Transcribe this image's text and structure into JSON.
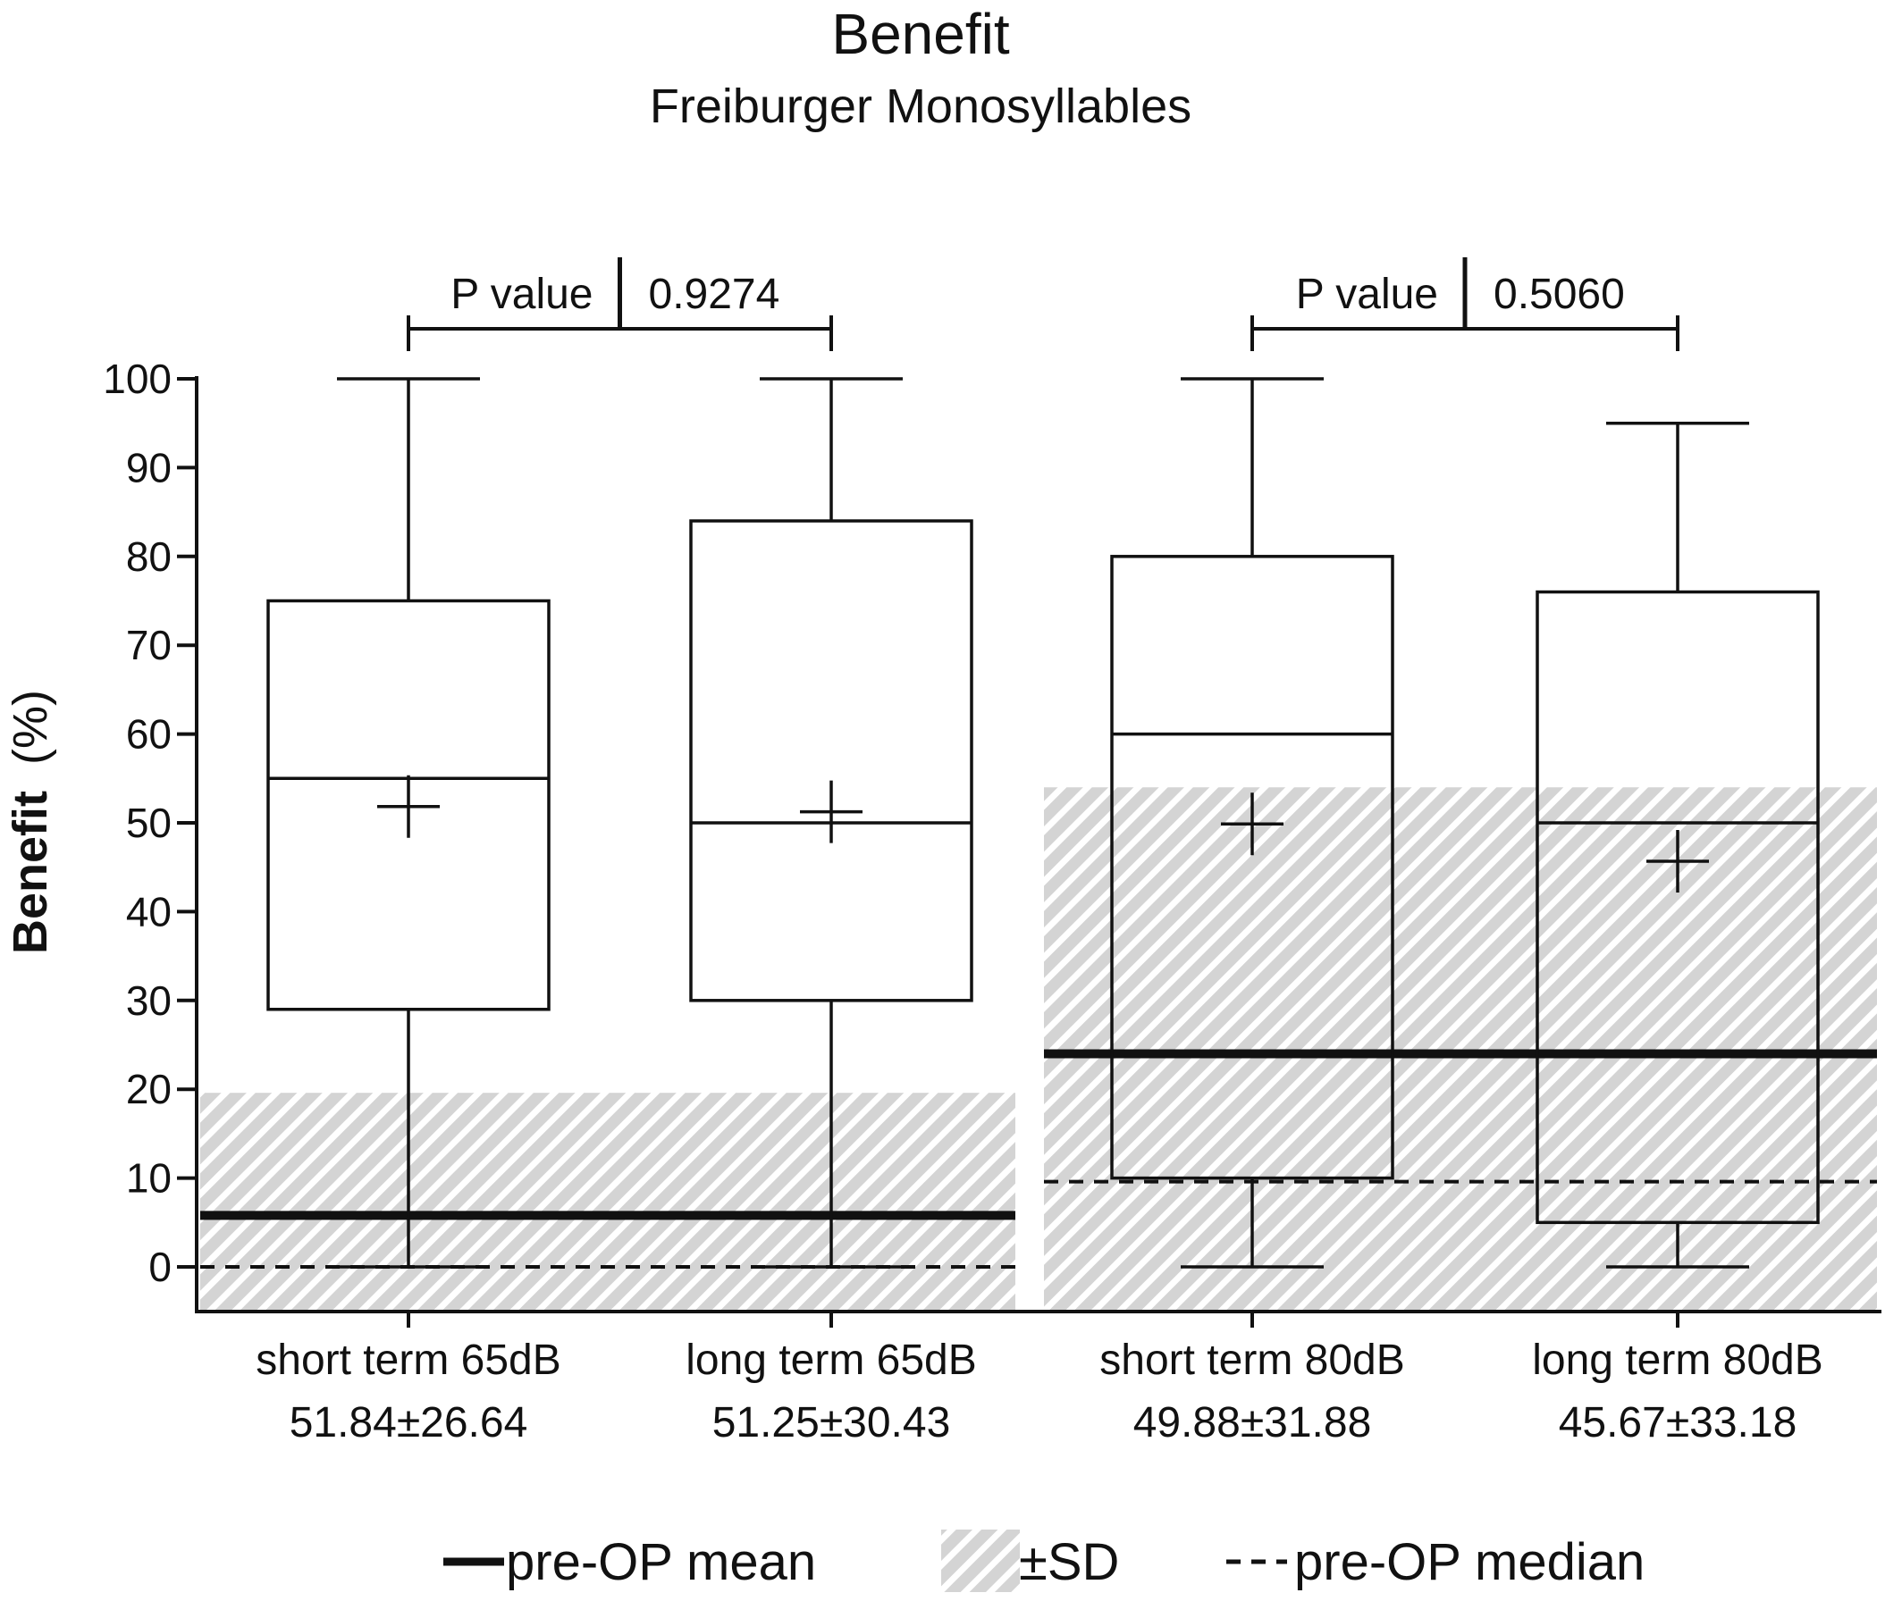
{
  "chart_data": {
    "type": "box",
    "title": "Benefit",
    "subtitle": "Freiburger Monosyllables",
    "ylabel_bold": "Benefit",
    "ylabel_unit": "(%)",
    "ylim": [
      -5,
      100
    ],
    "yticks": [
      0,
      10,
      20,
      30,
      40,
      50,
      60,
      70,
      80,
      90,
      100
    ],
    "grid": false,
    "groups": [
      {
        "category": "short term 65dB",
        "summary": "51.84±26.64",
        "min": 0,
        "q1": 29,
        "median": 55,
        "q3": 75,
        "max": 100,
        "mean": 51.84
      },
      {
        "category": "long term 65dB",
        "summary": "51.25±30.43",
        "min": 0,
        "q1": 30,
        "median": 50,
        "q3": 84,
        "max": 100,
        "mean": 51.25
      },
      {
        "category": "short term 80dB",
        "summary": "49.88±31.88",
        "min": 0,
        "q1": 10,
        "median": 60,
        "q3": 80,
        "max": 100,
        "mean": 49.88
      },
      {
        "category": "long term 80dB",
        "summary": "45.67±33.18",
        "min": 0,
        "q1": 5,
        "median": 50,
        "q3": 76,
        "max": 95,
        "mean": 45.67
      }
    ],
    "reference": [
      {
        "level": "65dB",
        "pre_op_mean": 5.8,
        "pre_op_median": 0,
        "sd_band": [
          -5,
          19.6
        ]
      },
      {
        "level": "80dB",
        "pre_op_mean": 24,
        "pre_op_median": 9.6,
        "sd_band": [
          -5,
          54
        ]
      }
    ],
    "comparisons": [
      {
        "label": "P value",
        "value": "0.9274",
        "between": [
          0,
          1
        ]
      },
      {
        "label": "P value",
        "value": "0.5060",
        "between": [
          2,
          3
        ]
      }
    ],
    "legend": {
      "mean_label": "pre-OP mean",
      "sd_label": "±SD",
      "median_label": "pre-OP median",
      "position": "bottom"
    },
    "colors": {
      "ink": "#111111",
      "band": "#d4d4d4",
      "stripe": "#ffffff"
    }
  }
}
